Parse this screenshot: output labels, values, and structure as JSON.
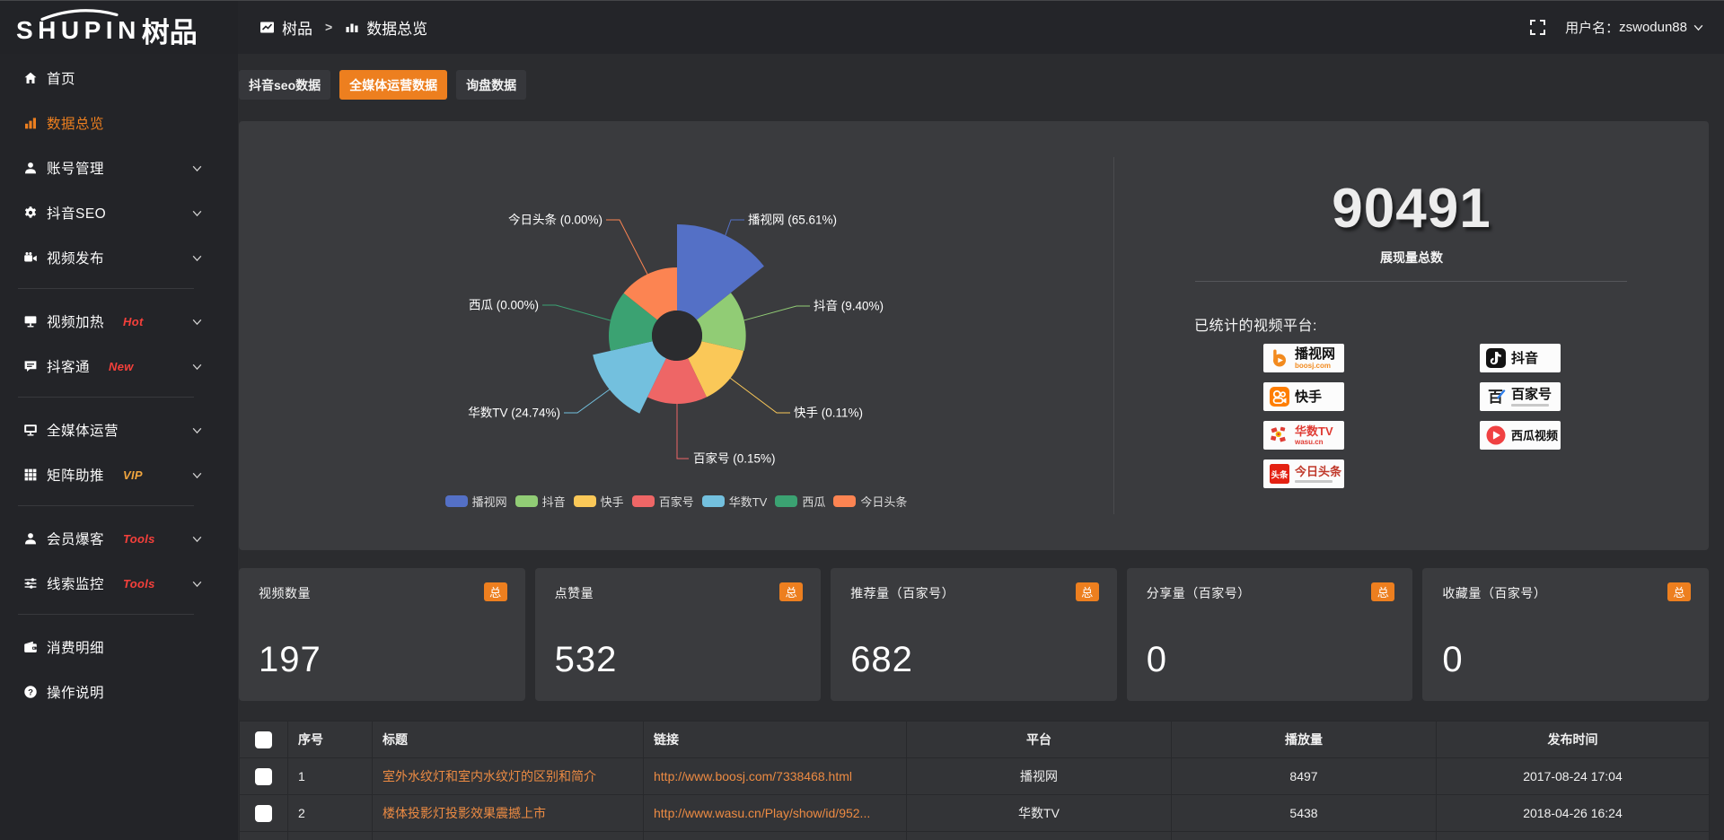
{
  "logo": {
    "en": "SHUPIN",
    "cn": "树品"
  },
  "topbar": {
    "breadcrumb_home": "树品",
    "breadcrumb_sep": ">",
    "breadcrumb_current": "数据总览",
    "fullscreen_icon": "fullscreen-icon",
    "username_label": "用户名：",
    "username": "zswodun88"
  },
  "sidebar": {
    "groups": [
      {
        "items": [
          {
            "id": "home",
            "label": "首页",
            "icon": "home-icon"
          },
          {
            "id": "data-overview",
            "label": "数据总览",
            "icon": "bar-chart-icon",
            "active": true
          },
          {
            "id": "account-management",
            "label": "账号管理",
            "icon": "user-icon",
            "chevron": true
          },
          {
            "id": "douyin-seo",
            "label": "抖音SEO",
            "icon": "gear-icon",
            "chevron": true
          },
          {
            "id": "video-publish",
            "label": "视频发布",
            "icon": "video-camera-icon",
            "chevron": true
          }
        ]
      },
      {
        "items": [
          {
            "id": "video-heat",
            "label": "视频加热",
            "icon": "screen-icon",
            "badge": "Hot",
            "badge_color": "#f5403b",
            "chevron": true
          },
          {
            "id": "douketong",
            "label": "抖客通",
            "icon": "chat-icon",
            "badge": "New",
            "badge_color": "#f5403b",
            "chevron": true
          }
        ]
      },
      {
        "items": [
          {
            "id": "media-operation",
            "label": "全媒体运营",
            "icon": "monitor-icon",
            "chevron": true
          },
          {
            "id": "matrix-boost",
            "label": "矩阵助推",
            "icon": "grid-icon",
            "badge": "VIP",
            "badge_color": "#f0a53f",
            "chevron": true
          }
        ]
      },
      {
        "items": [
          {
            "id": "member-burst",
            "label": "会员爆客",
            "icon": "user-icon",
            "badge": "Tools",
            "badge_color": "#f5403b",
            "chevron": true
          },
          {
            "id": "clue-monitor",
            "label": "线索监控",
            "icon": "sliders-icon",
            "badge": "Tools",
            "badge_color": "#f5403b",
            "chevron": true
          }
        ]
      },
      {
        "items": [
          {
            "id": "expense-detail",
            "label": "消费明细",
            "icon": "wallet-icon"
          },
          {
            "id": "help",
            "label": "操作说明",
            "icon": "question-icon"
          }
        ]
      }
    ]
  },
  "tabs": [
    {
      "label": "抖音seo数据"
    },
    {
      "label": "全媒体运营数据",
      "active": true
    },
    {
      "label": "询盘数据"
    }
  ],
  "chart_data": {
    "type": "pie",
    "variant": "nightingale-rose",
    "categories": [
      "播视网",
      "抖音",
      "快手",
      "百家号",
      "华数TV",
      "西瓜",
      "今日头条"
    ],
    "values_pct": [
      65.61,
      9.4,
      0.11,
      0.15,
      24.74,
      0.0,
      0.0
    ],
    "pct_display": [
      "65.61",
      "9.40",
      "0.11",
      "0.15",
      "24.74",
      "0.00",
      "0.00"
    ],
    "colors": [
      "#5470c6",
      "#91cc75",
      "#fac858",
      "#ee6666",
      "#73c0de",
      "#3ba272",
      "#fc8452"
    ],
    "legend_position": "bottom",
    "label_format": "{name} ({pct}%)"
  },
  "summary": {
    "total_value": "90491",
    "total_label": "展现量总数",
    "platforms_title": "已统计的视频平台:",
    "platform_badges_col1": [
      {
        "id": "boosj",
        "name": "播视网",
        "sub": "boosj.com",
        "sub_color": "#f28a1e"
      },
      {
        "id": "kuaishou",
        "name": "快手"
      },
      {
        "id": "wasu",
        "name": "华数TV",
        "sub": "wasu.cn",
        "sub_color": "#e03c34"
      },
      {
        "id": "toutiao",
        "name": "今日头条",
        "grayline": true
      }
    ],
    "platform_badges_col2": [
      {
        "id": "douyin",
        "name": "抖音"
      },
      {
        "id": "baijiahao",
        "name": "百家号",
        "grayline": true
      },
      {
        "id": "xigua",
        "name": "西瓜视频"
      }
    ]
  },
  "stat_cards": [
    {
      "title": "视频数量",
      "badge": "总",
      "value": "197"
    },
    {
      "title": "点赞量",
      "badge": "总",
      "value": "532"
    },
    {
      "title": "推荐量（百家号）",
      "badge": "总",
      "value": "682"
    },
    {
      "title": "分享量（百家号）",
      "badge": "总",
      "value": "0"
    },
    {
      "title": "收藏量（百家号）",
      "badge": "总",
      "value": "0"
    }
  ],
  "table": {
    "headers": [
      "序号",
      "标题",
      "链接",
      "平台",
      "播放量",
      "发布时间"
    ],
    "rows": [
      {
        "no": "1",
        "title": "室外水纹灯和室内水纹灯的区别和简介",
        "link": "http://www.boosj.com/7338468.html",
        "platform": "播视网",
        "plays": "8497",
        "time": "2017-08-24 17:04"
      },
      {
        "no": "2",
        "title": "楼体投影灯投影效果震撼上市",
        "link": "http://www.wasu.cn/Play/show/id/952...",
        "platform": "华数TV",
        "plays": "5438",
        "time": "2018-04-26 16:24"
      }
    ]
  }
}
